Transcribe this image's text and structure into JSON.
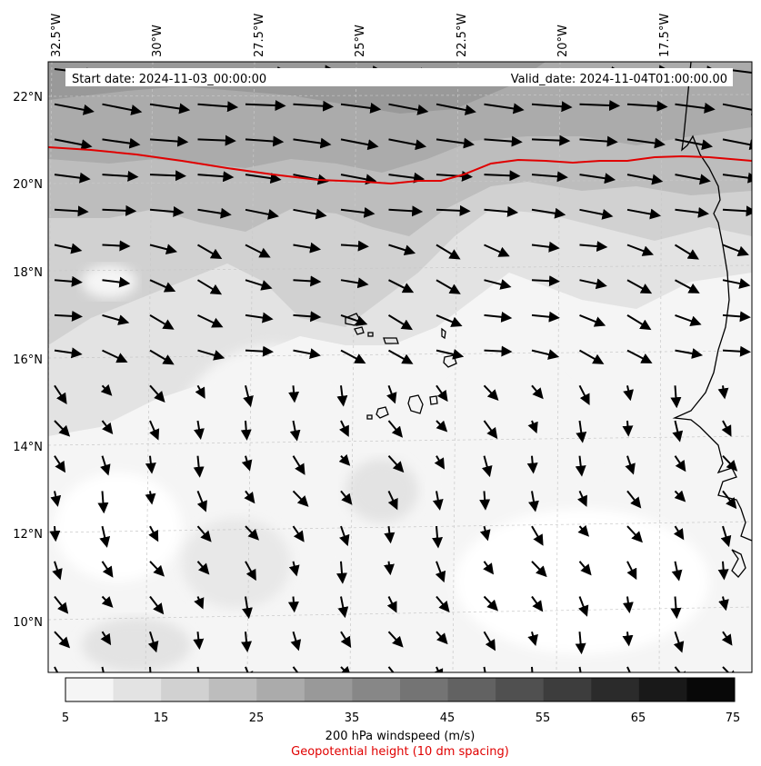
{
  "header": {
    "start_date": "Start date: 2024-11-03_00:00:00",
    "valid_date": "Valid_date: 2024-11-04T01:00:00.00"
  },
  "longitude_labels": [
    "32.5°W",
    "30°W",
    "27.5°W",
    "25°W",
    "22.5°W",
    "20°W",
    "17.5°W"
  ],
  "latitude_labels": [
    "22°N",
    "20°N",
    "18°N",
    "16°N",
    "14°N",
    "12°N",
    "10°N"
  ],
  "colorbar": {
    "ticks": [
      "5",
      "15",
      "25",
      "35",
      "45",
      "55",
      "65",
      "75"
    ],
    "label": "200 hPa windspeed (m/s)",
    "colors": [
      "#f5f5f5",
      "#e3e3e3",
      "#d1d1d1",
      "#bdbdbd",
      "#ababab",
      "#999999",
      "#878787",
      "#747474",
      "#626262",
      "#505050",
      "#3d3d3d",
      "#2b2b2b",
      "#191919",
      "#080808"
    ]
  },
  "contour_label": "Geopotential height (10 dm spacing)",
  "colors": {
    "contour": "#e00000",
    "arrow": "#000000",
    "coast": "#000000"
  }
}
